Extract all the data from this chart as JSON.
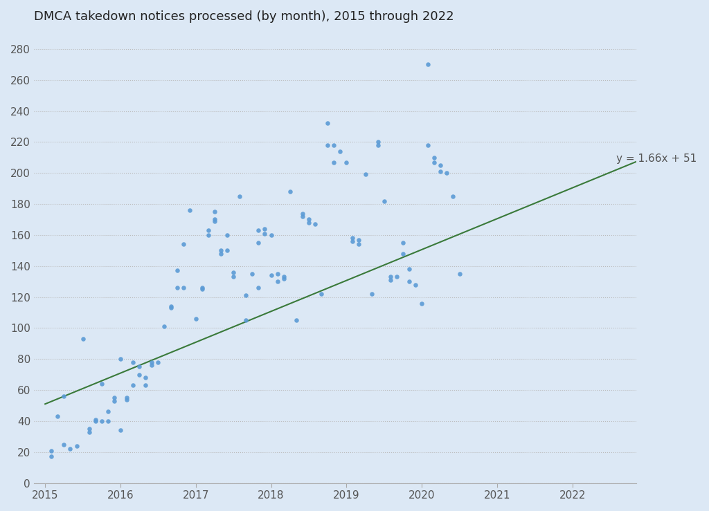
{
  "title": "DMCA takedown notices processed (by month), 2015 through 2022",
  "background_color": "#dce8f5",
  "plot_bg_color": "#dce8f5",
  "scatter_color": "#5b9bd5",
  "line_color": "#3a7a3a",
  "regression_label": "y = 1.66x + 51",
  "slope": 1.66,
  "intercept": 51,
  "ylim": [
    0,
    290
  ],
  "yticks": [
    0,
    20,
    40,
    60,
    80,
    100,
    120,
    140,
    160,
    180,
    200,
    220,
    240,
    260,
    280
  ],
  "x_year_start": 2015,
  "scatter_data_months": [
    [
      1,
      21
    ],
    [
      1,
      17
    ],
    [
      2,
      43
    ],
    [
      3,
      56
    ],
    [
      3,
      25
    ],
    [
      4,
      22
    ],
    [
      5,
      24
    ],
    [
      6,
      93
    ],
    [
      7,
      35
    ],
    [
      7,
      33
    ],
    [
      8,
      40
    ],
    [
      8,
      41
    ],
    [
      9,
      64
    ],
    [
      9,
      40
    ],
    [
      10,
      46
    ],
    [
      10,
      40
    ],
    [
      11,
      55
    ],
    [
      11,
      53
    ],
    [
      12,
      80
    ],
    [
      12,
      34
    ],
    [
      13,
      55
    ],
    [
      13,
      54
    ],
    [
      14,
      63
    ],
    [
      14,
      78
    ],
    [
      15,
      75
    ],
    [
      15,
      70
    ],
    [
      16,
      68
    ],
    [
      16,
      63
    ],
    [
      17,
      76
    ],
    [
      17,
      78
    ],
    [
      18,
      78
    ],
    [
      19,
      101
    ],
    [
      20,
      114
    ],
    [
      20,
      113
    ],
    [
      21,
      126
    ],
    [
      21,
      137
    ],
    [
      22,
      154
    ],
    [
      22,
      126
    ],
    [
      23,
      176
    ],
    [
      24,
      106
    ],
    [
      25,
      126
    ],
    [
      25,
      125
    ],
    [
      26,
      160
    ],
    [
      26,
      163
    ],
    [
      27,
      175
    ],
    [
      27,
      170
    ],
    [
      27,
      169
    ],
    [
      28,
      150
    ],
    [
      28,
      148
    ],
    [
      29,
      160
    ],
    [
      29,
      150
    ],
    [
      30,
      136
    ],
    [
      30,
      133
    ],
    [
      31,
      185
    ],
    [
      32,
      121
    ],
    [
      32,
      105
    ],
    [
      33,
      135
    ],
    [
      34,
      155
    ],
    [
      34,
      126
    ],
    [
      34,
      163
    ],
    [
      35,
      164
    ],
    [
      35,
      161
    ],
    [
      36,
      160
    ],
    [
      36,
      134
    ],
    [
      37,
      130
    ],
    [
      37,
      135
    ],
    [
      38,
      133
    ],
    [
      38,
      132
    ],
    [
      39,
      188
    ],
    [
      40,
      105
    ],
    [
      41,
      174
    ],
    [
      41,
      172
    ],
    [
      42,
      170
    ],
    [
      42,
      168
    ],
    [
      43,
      167
    ],
    [
      44,
      122
    ],
    [
      45,
      232
    ],
    [
      45,
      218
    ],
    [
      46,
      218
    ],
    [
      46,
      207
    ],
    [
      47,
      214
    ],
    [
      48,
      207
    ],
    [
      49,
      156
    ],
    [
      49,
      158
    ],
    [
      50,
      154
    ],
    [
      50,
      157
    ],
    [
      51,
      199
    ],
    [
      52,
      122
    ],
    [
      53,
      220
    ],
    [
      53,
      218
    ],
    [
      54,
      182
    ],
    [
      55,
      133
    ],
    [
      55,
      131
    ],
    [
      56,
      133
    ],
    [
      57,
      155
    ],
    [
      57,
      148
    ],
    [
      58,
      138
    ],
    [
      58,
      130
    ],
    [
      59,
      128
    ],
    [
      60,
      116
    ],
    [
      61,
      270
    ],
    [
      61,
      218
    ],
    [
      62,
      210
    ],
    [
      62,
      207
    ],
    [
      63,
      205
    ],
    [
      63,
      201
    ],
    [
      64,
      200
    ],
    [
      65,
      185
    ],
    [
      66,
      135
    ]
  ],
  "xlim": [
    2014.85,
    2022.85
  ],
  "xtick_years": [
    2015,
    2016,
    2017,
    2018,
    2019,
    2020,
    2021,
    2022
  ]
}
